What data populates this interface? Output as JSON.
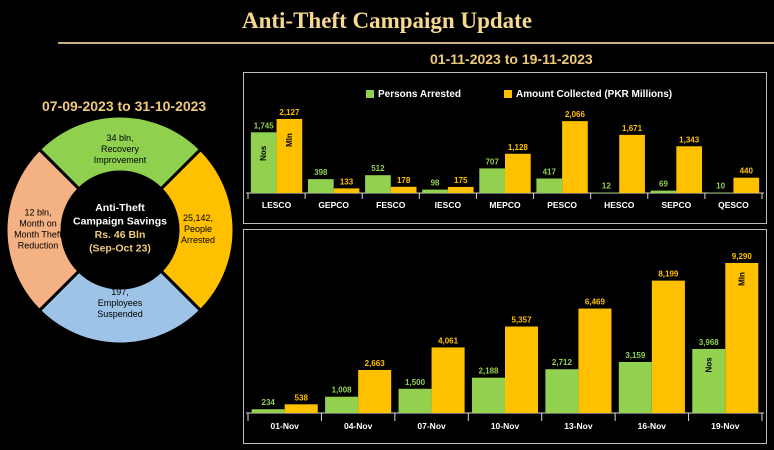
{
  "header": {
    "title": "Anti-Theft Campaign Update",
    "range_top": "01-11-2023 to 19-11-2023",
    "range_left": "07-09-2023 to 31-10-2023"
  },
  "colors": {
    "green": "#92d050",
    "gold": "#ffc000",
    "donut_green": "#8fd14f",
    "donut_gold": "#ffc000",
    "donut_blue": "#9dc3e6",
    "donut_peach": "#f4b183"
  },
  "donut": {
    "center": [
      "Anti-Theft",
      "Campaign Savings",
      "Rs. 46 Bln",
      "(Sep-Oct 23)"
    ],
    "segments": [
      {
        "lines": [
          "34 bln,",
          "Recovery",
          "Improvement"
        ],
        "color": "#8fd14f"
      },
      {
        "lines": [
          "25,142,",
          "People",
          "Arrested"
        ],
        "color": "#ffc000"
      },
      {
        "lines": [
          "197,",
          "Employees",
          "Suspended"
        ],
        "color": "#9dc3e6"
      },
      {
        "lines": [
          "12 bln,",
          "Month on",
          "Month Theft",
          "Reduction"
        ],
        "color": "#f4b183"
      }
    ]
  },
  "chart_data": [
    {
      "type": "bar",
      "legend": [
        "Persons Arrested",
        "Amount Collected (PKR Millions)"
      ],
      "categories": [
        "LESCO",
        "GEPCO",
        "FESCO",
        "IESCO",
        "MEPCO",
        "PESCO",
        "HESCO",
        "SEPCO",
        "QESCO"
      ],
      "series": [
        {
          "name": "Persons Arrested",
          "values": [
            1745,
            398,
            512,
            98,
            707,
            417,
            12,
            69,
            10
          ],
          "inner_label": "Nos"
        },
        {
          "name": "Amount Collected (PKR Millions)",
          "values": [
            2127,
            133,
            178,
            175,
            1128,
            2066,
            1671,
            1343,
            440
          ],
          "inner_label": "Mln"
        }
      ],
      "legend_position": "top"
    },
    {
      "type": "bar",
      "categories": [
        "01-Nov",
        "04-Nov",
        "07-Nov",
        "10-Nov",
        "13-Nov",
        "16-Nov",
        "19-Nov"
      ],
      "series": [
        {
          "name": "Persons Arrested",
          "values": [
            234,
            1008,
            1500,
            2188,
            2712,
            3159,
            3968
          ],
          "inner_label": "Nos"
        },
        {
          "name": "Amount Collected (PKR Millions)",
          "values": [
            538,
            2663,
            4061,
            5357,
            6469,
            8199,
            9290
          ],
          "inner_label": "Mln"
        }
      ]
    }
  ]
}
